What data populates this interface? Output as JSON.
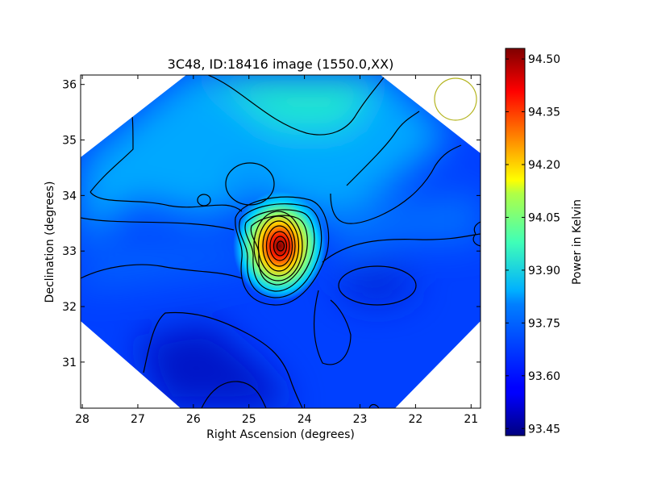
{
  "chart_data": {
    "type": "heatmap",
    "title": "3C48, ID:18416 image (1550.0,XX)",
    "xlabel": "Right Ascension (degrees)",
    "ylabel": "Declination (degrees)",
    "xlim": [
      28.03,
      20.83
    ],
    "ylim": [
      30.17,
      36.17
    ],
    "x_ticks": [
      "28",
      "27",
      "26",
      "25",
      "24",
      "23",
      "22",
      "21"
    ],
    "y_ticks": [
      "31",
      "32",
      "33",
      "34",
      "35",
      "36"
    ],
    "colorbar": {
      "label": "Power in Kelvin",
      "min": 93.43,
      "max": 94.53,
      "ticks": [
        "93.45",
        "93.60",
        "93.75",
        "93.90",
        "94.05",
        "94.20",
        "94.35",
        "94.50"
      ],
      "colormap": "jet"
    },
    "peak": {
      "ra": 24.43,
      "dec": 33.1,
      "value": 94.51
    },
    "features": [
      {
        "ra": 24.95,
        "dec": 33.95,
        "value": 93.7
      },
      {
        "ra": 25.75,
        "dec": 33.9,
        "value": 93.66
      },
      {
        "ra": 22.8,
        "dec": 32.35,
        "value": 93.5
      },
      {
        "ra": 25.3,
        "dec": 30.35,
        "value": 93.44
      },
      {
        "ra": 23.8,
        "dec": 36.0,
        "value": 93.82
      }
    ],
    "beam_color": "#b4b41e",
    "grid": false,
    "legend": "none"
  }
}
